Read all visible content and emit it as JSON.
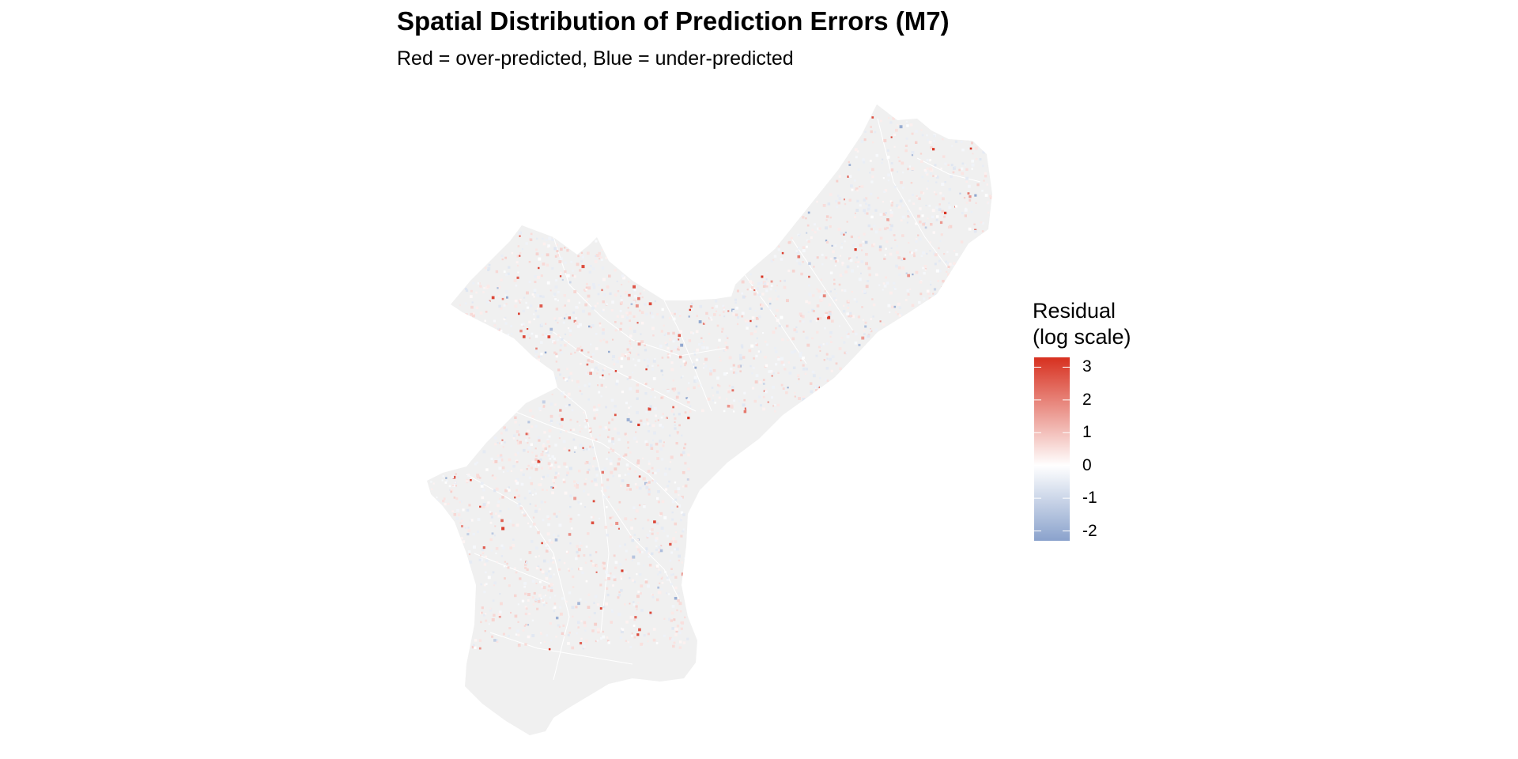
{
  "title": "Spatial Distribution of Prediction Errors (M7)",
  "subtitle": "Red = over-predicted, Blue = under-predicted",
  "legend": {
    "title_line1": "Residual",
    "title_line2": "(log scale)",
    "ticks": [
      "3",
      "2",
      "1",
      "0",
      "-1",
      "-2"
    ],
    "tick_values": [
      3,
      2,
      1,
      0,
      -1,
      -2
    ],
    "range": [
      -2.3,
      3.3
    ],
    "colors": {
      "high": "#d7301f",
      "mid": "#ffffff",
      "low": "#8aa2cc"
    }
  },
  "map": {
    "land_color": "#f0f0f0",
    "boundary_color": "#ffffff",
    "points_color_scale": "diverging red-white-blue"
  }
}
